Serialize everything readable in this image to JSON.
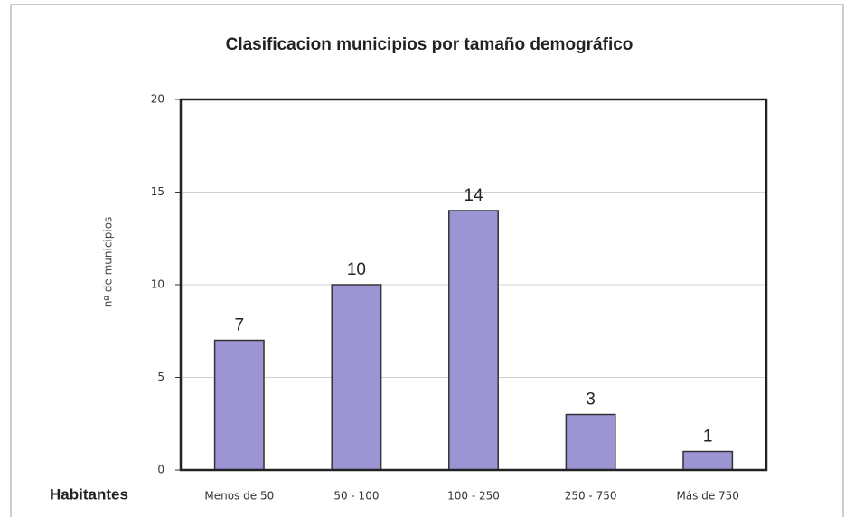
{
  "chart_data": {
    "type": "bar",
    "title": "Clasificacion municipios por tamaño demográfico",
    "y_label": "nº de municipios",
    "x_label": "Habitantes",
    "categories": [
      "Menos de 50",
      "50 - 100",
      "100 - 250",
      "250 - 750",
      "Más de 750"
    ],
    "values": [
      7,
      10,
      14,
      3,
      1
    ],
    "color": "#9b95d3",
    "ylim": [
      0,
      20
    ],
    "yticks": [
      0,
      5,
      10,
      15,
      20
    ],
    "grid": true
  }
}
